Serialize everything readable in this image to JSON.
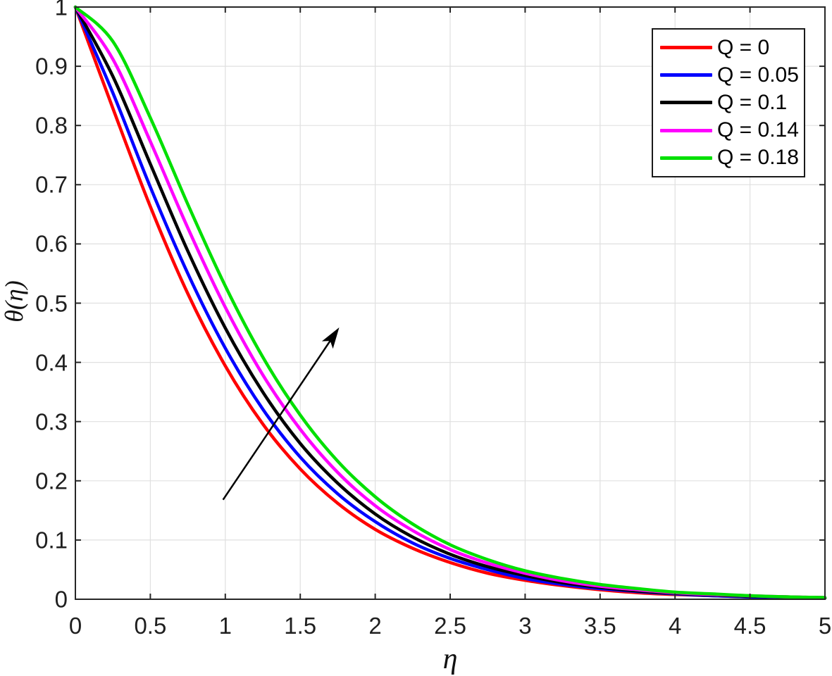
{
  "figure": {
    "background_color": "#ffffff",
    "axes_color": "#262626",
    "grid_color": "#e0e0e0",
    "tick_label_color": "#1f1f1f"
  },
  "chart_data": {
    "type": "line",
    "title": "",
    "xlabel": "η",
    "ylabel": "θ(η)",
    "xlim": [
      0,
      5
    ],
    "ylim": [
      0,
      1
    ],
    "grid": true,
    "legend_position": "top-right",
    "xticks": [
      0,
      0.5,
      1,
      1.5,
      2,
      2.5,
      3,
      3.5,
      4,
      4.5,
      5
    ],
    "xtick_labels": [
      "0",
      "0.5",
      "1",
      "1.5",
      "2",
      "2.5",
      "3",
      "3.5",
      "4",
      "4.5",
      "5"
    ],
    "yticks": [
      0,
      0.1,
      0.2,
      0.3,
      0.4,
      0.5,
      0.6,
      0.7,
      0.8,
      0.9,
      1
    ],
    "ytick_labels": [
      "0",
      "0.1",
      "0.2",
      "0.3",
      "0.4",
      "0.5",
      "0.6",
      "0.7",
      "0.8",
      "0.9",
      "1"
    ],
    "x": [
      0,
      0.25,
      0.5,
      0.75,
      1,
      1.25,
      1.5,
      1.75,
      2,
      2.25,
      2.5,
      2.75,
      3,
      3.25,
      3.5,
      3.75,
      4,
      4.25,
      4.5,
      4.75,
      5
    ],
    "series": [
      {
        "name": "Q = 0",
        "color": "#ff0000",
        "values": [
          1,
          0.829,
          0.663,
          0.516,
          0.394,
          0.296,
          0.22,
          0.162,
          0.118,
          0.086,
          0.062,
          0.044,
          0.032,
          0.023,
          0.016,
          0.011,
          0.008,
          0.006,
          0.004,
          0.003,
          0.002
        ]
      },
      {
        "name": "Q = 0.05",
        "color": "#0000ff",
        "values": [
          1,
          0.855,
          0.696,
          0.55,
          0.424,
          0.321,
          0.24,
          0.178,
          0.131,
          0.095,
          0.069,
          0.05,
          0.035,
          0.025,
          0.018,
          0.013,
          0.009,
          0.006,
          0.004,
          0.003,
          0.002
        ]
      },
      {
        "name": "Q = 0.1",
        "color": "#000000",
        "values": [
          1,
          0.883,
          0.735,
          0.588,
          0.458,
          0.35,
          0.263,
          0.196,
          0.144,
          0.105,
          0.076,
          0.055,
          0.04,
          0.028,
          0.02,
          0.014,
          0.01,
          0.007,
          0.005,
          0.004,
          0.002
        ]
      },
      {
        "name": "Q = 0.14",
        "color": "#ff00ff",
        "values": [
          1,
          0.912,
          0.773,
          0.627,
          0.493,
          0.379,
          0.287,
          0.214,
          0.158,
          0.116,
          0.084,
          0.061,
          0.044,
          0.031,
          0.022,
          0.016,
          0.011,
          0.008,
          0.006,
          0.004,
          0.003
        ]
      },
      {
        "name": "Q = 0.18",
        "color": "#00e000",
        "values": [
          1,
          0.942,
          0.813,
          0.667,
          0.529,
          0.409,
          0.311,
          0.233,
          0.173,
          0.127,
          0.092,
          0.067,
          0.048,
          0.035,
          0.025,
          0.018,
          0.012,
          0.009,
          0.006,
          0.004,
          0.003
        ]
      }
    ],
    "annotation_arrow": {
      "from": [
        0.985,
        0.168
      ],
      "to": [
        1.76,
        0.459
      ],
      "color": "#000000"
    }
  }
}
